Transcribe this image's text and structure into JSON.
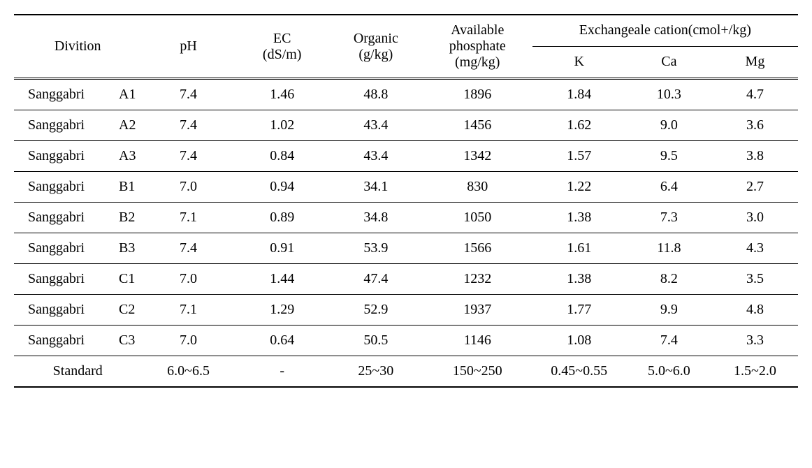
{
  "table": {
    "headers": {
      "division": "Divition",
      "ph": "pH",
      "ec": "EC",
      "ec_unit": "(dS/m)",
      "organic": "Organic",
      "organic_unit": "(g/kg)",
      "phosphate": "Available phosphate",
      "phosphate_unit": "(mg/kg)",
      "cation_group": "Exchangeale cation(cmol+/kg)",
      "k": "K",
      "ca": "Ca",
      "mg": "Mg"
    },
    "rows": [
      {
        "site": "Sanggabri",
        "code": "A1",
        "ph": "7.4",
        "ec": "1.46",
        "organic": "48.8",
        "phosphate": "1896",
        "k": "1.84",
        "ca": "10.3",
        "mg": "4.7"
      },
      {
        "site": "Sanggabri",
        "code": "A2",
        "ph": "7.4",
        "ec": "1.02",
        "organic": "43.4",
        "phosphate": "1456",
        "k": "1.62",
        "ca": "9.0",
        "mg": "3.6"
      },
      {
        "site": "Sanggabri",
        "code": "A3",
        "ph": "7.4",
        "ec": "0.84",
        "organic": "43.4",
        "phosphate": "1342",
        "k": "1.57",
        "ca": "9.5",
        "mg": "3.8"
      },
      {
        "site": "Sanggabri",
        "code": "B1",
        "ph": "7.0",
        "ec": "0.94",
        "organic": "34.1",
        "phosphate": "830",
        "k": "1.22",
        "ca": "6.4",
        "mg": "2.7"
      },
      {
        "site": "Sanggabri",
        "code": "B2",
        "ph": "7.1",
        "ec": "0.89",
        "organic": "34.8",
        "phosphate": "1050",
        "k": "1.38",
        "ca": "7.3",
        "mg": "3.0"
      },
      {
        "site": "Sanggabri",
        "code": "B3",
        "ph": "7.4",
        "ec": "0.91",
        "organic": "53.9",
        "phosphate": "1566",
        "k": "1.61",
        "ca": "11.8",
        "mg": "4.3"
      },
      {
        "site": "Sanggabri",
        "code": "C1",
        "ph": "7.0",
        "ec": "1.44",
        "organic": "47.4",
        "phosphate": "1232",
        "k": "1.38",
        "ca": "8.2",
        "mg": "3.5"
      },
      {
        "site": "Sanggabri",
        "code": "C2",
        "ph": "7.1",
        "ec": "1.29",
        "organic": "52.9",
        "phosphate": "1937",
        "k": "1.77",
        "ca": "9.9",
        "mg": "4.8"
      },
      {
        "site": "Sanggabri",
        "code": "C3",
        "ph": "7.0",
        "ec": "0.64",
        "organic": "50.5",
        "phosphate": "1146",
        "k": "1.08",
        "ca": "7.4",
        "mg": "3.3"
      }
    ],
    "standard": {
      "label": "Standard",
      "ph": "6.0~6.5",
      "ec": "-",
      "organic": "25~30",
      "phosphate": "150~250",
      "k": "0.45~0.55",
      "ca": "5.0~6.0",
      "mg": "1.5~2.0"
    }
  },
  "styling": {
    "font_family": "Georgia, serif",
    "font_size": 20,
    "text_color": "#000000",
    "background_color": "#ffffff",
    "border_color": "#000000",
    "top_border_width": 2,
    "row_border_width": 1,
    "bottom_border_width": 2,
    "column_widths_pct": [
      16,
      12,
      12,
      12,
      14,
      12,
      11,
      11
    ]
  }
}
